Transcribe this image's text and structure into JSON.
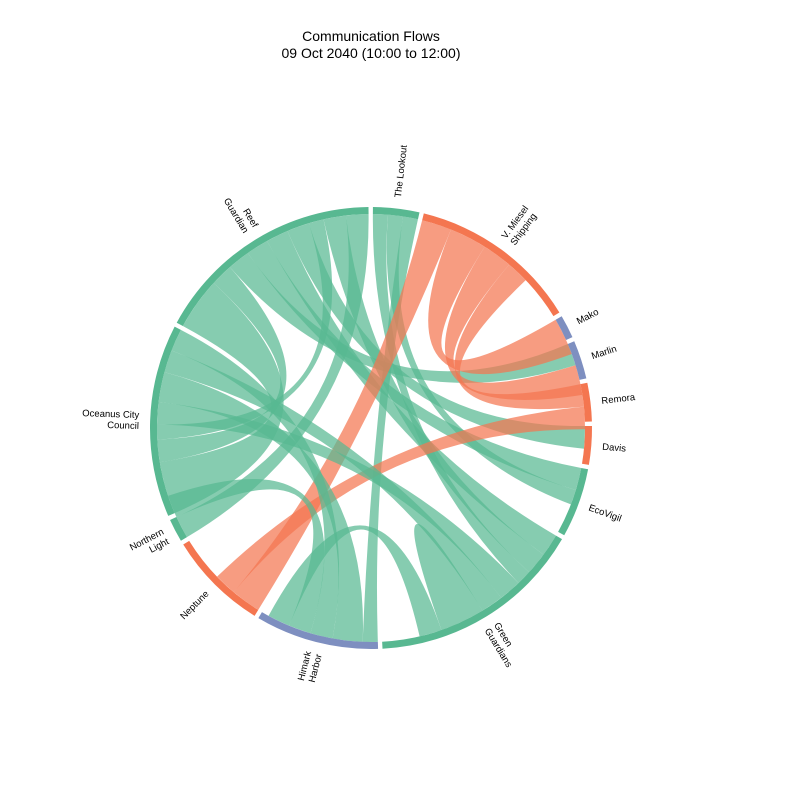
{
  "chart_data": {
    "type": "chord",
    "title": "Communication Flows",
    "subtitle": "09 Oct 2040 (10:00 to 12:00)",
    "colors": {
      "green": "#58b891",
      "orange": "#f47650",
      "blue": "#7e8fc0"
    },
    "nodes": [
      {
        "name": "The Lookout",
        "label": "The Lookout",
        "size": 6,
        "color": "green"
      },
      {
        "name": "V. Miesel Shipping",
        "label": "V. Miesel\nShipping",
        "size": 22,
        "color": "orange"
      },
      {
        "name": "Mako",
        "label": "Mako",
        "size": 3,
        "color": "blue"
      },
      {
        "name": "Marlin",
        "label": "Marlin",
        "size": 5,
        "color": "blue"
      },
      {
        "name": "Remora",
        "label": "Remora",
        "size": 5,
        "color": "orange"
      },
      {
        "name": "Davis",
        "label": "Davis",
        "size": 5,
        "color": "orange"
      },
      {
        "name": "EcoVigil",
        "label": "EcoVigil",
        "size": 9,
        "color": "green"
      },
      {
        "name": "Green Guardians",
        "label": "Green\nGuardians",
        "size": 28,
        "color": "green"
      },
      {
        "name": "Himark Harbor",
        "label": "Himark\nHarbor",
        "size": 16,
        "color": "blue"
      },
      {
        "name": "Neptune",
        "label": "Neptune",
        "size": 13,
        "color": "orange"
      },
      {
        "name": "Northern Light",
        "label": "Northern\nLight",
        "size": 3,
        "color": "green"
      },
      {
        "name": "Oceanus City Council",
        "label": "Oceanus City\nCouncil",
        "size": 25,
        "color": "green"
      },
      {
        "name": "Reef Guardian",
        "label": "Reef\nGuardian",
        "size": 30,
        "color": "green"
      }
    ],
    "flows": [
      {
        "source": "Reef Guardian",
        "target": "Oceanus City Council",
        "value": 7
      },
      {
        "source": "Reef Guardian",
        "target": "Oceanus City Council",
        "value": 3
      },
      {
        "source": "Reef Guardian",
        "target": "Marlin",
        "value": 3
      },
      {
        "source": "Reef Guardian",
        "target": "EcoVigil",
        "value": 3
      },
      {
        "source": "Reef Guardian",
        "target": "Green Guardians",
        "value": 3
      },
      {
        "source": "Reef Guardian",
        "target": "Davis",
        "value": 3
      },
      {
        "source": "Reef Guardian",
        "target": "Oceanus City Council",
        "value": 2
      },
      {
        "source": "Reef Guardian",
        "target": "Green Guardians",
        "value": 3
      },
      {
        "source": "Reef Guardian",
        "target": "Northern Light",
        "value": 3
      },
      {
        "source": "The Lookout",
        "target": "Green Guardians",
        "value": 2
      },
      {
        "source": "The Lookout",
        "target": "EcoVigil",
        "value": 2
      },
      {
        "source": "The Lookout",
        "target": "Himark Harbor",
        "value": 2
      },
      {
        "source": "V. Miesel Shipping",
        "target": "Neptune",
        "value": 4
      },
      {
        "source": "V. Miesel Shipping",
        "target": "Mako",
        "value": 5
      },
      {
        "source": "V. Miesel Shipping",
        "target": "Marlin",
        "value": 4
      },
      {
        "source": "V. Miesel Shipping",
        "target": "Remora",
        "value": 3
      },
      {
        "source": "Remora",
        "target": "Neptune",
        "value": 3
      },
      {
        "source": "Oceanus City Council",
        "target": "Green Guardians",
        "value": 3
      },
      {
        "source": "Oceanus City Council",
        "target": "Himark Harbor",
        "value": 4
      },
      {
        "source": "Oceanus City Council",
        "target": "Green Guardians",
        "value": 3
      },
      {
        "source": "Oceanus City Council",
        "target": "Himark Harbor",
        "value": 3
      },
      {
        "source": "Northern Light",
        "target": "Himark Harbor",
        "value": 3
      },
      {
        "source": "Green Guardians",
        "target": "Green Guardians",
        "value": 3
      },
      {
        "source": "Green Guardians",
        "target": "Himark Harbor",
        "value": 3
      }
    ]
  }
}
